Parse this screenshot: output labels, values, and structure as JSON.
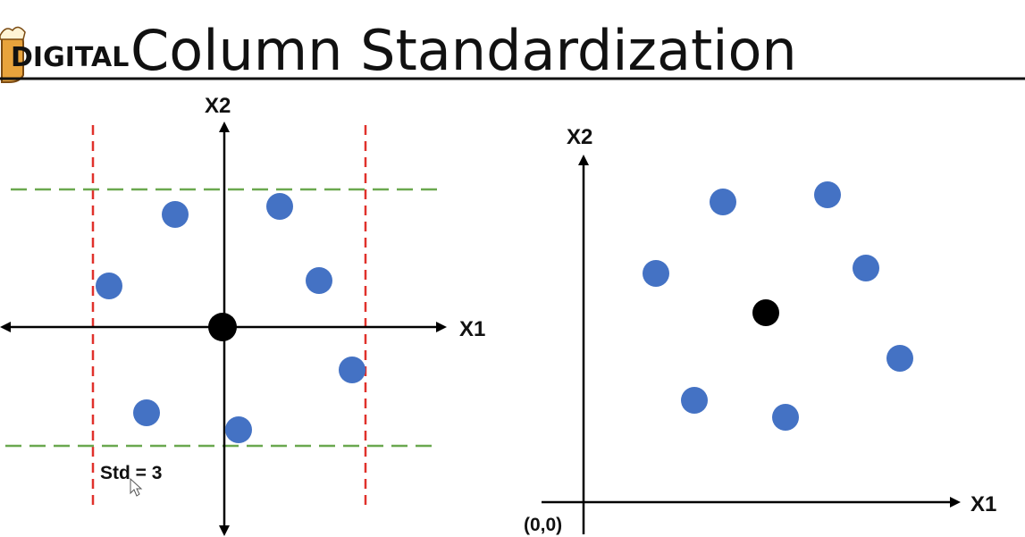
{
  "header": {
    "logo_text": "DIGITAL",
    "title": "Column Standardization"
  },
  "left_plot": {
    "x_label": "X1",
    "y_label": "X2",
    "std_note": "Std = 3"
  },
  "right_plot": {
    "x_label": "X1",
    "y_label": "X2",
    "origin_label": "(0,0)"
  },
  "colors": {
    "point": "#4472c4",
    "mean": "#000000",
    "std_x_lines": "#e0312b",
    "std_y_lines": "#6aa84f",
    "axis": "#000000"
  }
}
